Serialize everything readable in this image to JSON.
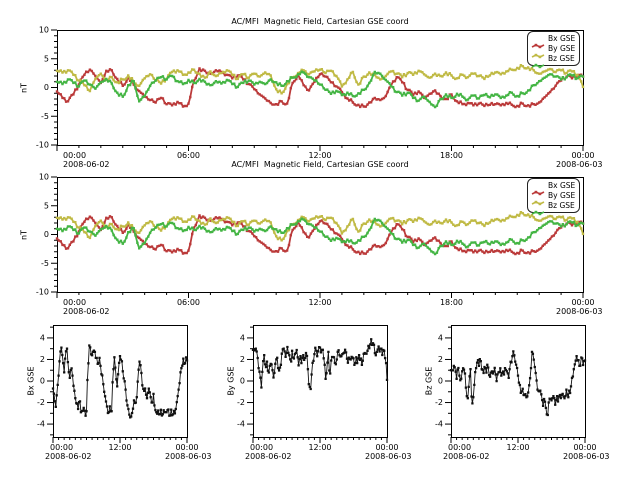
{
  "figure": {
    "top_title": "AC/MFI  Magnetic Field, Cartesian GSE coord",
    "middle_title": "AC/MFI  Magnetic Field, Cartesian GSE coord"
  },
  "legend": {
    "items": [
      {
        "label": "Bx GSE",
        "color": "#bb3a3a"
      },
      {
        "label": "By GSE",
        "color": "#c0ba45"
      },
      {
        "label": "Bz GSE",
        "color": "#44b544"
      }
    ]
  },
  "colors": {
    "bx": "#bb3a3a",
    "by": "#c0ba45",
    "bz": "#44b544",
    "small_series": "#111111",
    "frame": "#000000",
    "background": "#ffffff"
  },
  "axes": {
    "big_y_label": "nT",
    "big_y_ticks": [
      -10,
      -5,
      0,
      5,
      10
    ],
    "big_y_tick_labels": [
      "-10",
      "-5",
      "0",
      "5",
      "10"
    ],
    "big_ylim": [
      -10,
      10
    ],
    "big_x_tick_hours": [
      0,
      6,
      12,
      18,
      24
    ],
    "big_x_tick_labels": [
      "00:00",
      "06:00",
      "12:00",
      "18:00",
      "00:00"
    ],
    "small_y_ticks": [
      -4,
      -2,
      0,
      2,
      4
    ],
    "small_y_tick_labels": [
      "-4",
      "-2",
      "0",
      "2",
      "4"
    ],
    "small_ylim": [
      -5.2,
      5.2
    ],
    "small_x_tick_hours": [
      0,
      12,
      24
    ],
    "small_x_tick_labels": [
      "00:00",
      "12:00",
      "00:00"
    ],
    "start_date": "2008-06-02",
    "end_date": "2008-06-03",
    "small_panel_y_labels": [
      "Bx GSE",
      "By GSE",
      "Bz GSE"
    ]
  },
  "chart_data": [
    {
      "type": "line",
      "title": "AC/MFI  Magnetic Field, Cartesian GSE coord",
      "xlabel": "",
      "ylabel": "nT",
      "ylim": [
        -10,
        10
      ],
      "x_start": "2008-06-02 00:00",
      "x_end": "2008-06-03 00:00",
      "x_step_minutes": 15,
      "x_tick_labels": [
        "00:00",
        "06:00",
        "12:00",
        "18:00",
        "00:00"
      ],
      "y_tick_labels": [
        "-10",
        "-5",
        "0",
        "5",
        "10"
      ],
      "legend_position": "upper-right",
      "grid": false,
      "series": [
        {
          "name": "Bx GSE",
          "color": "#bb3a3a",
          "values": [
            -0.7,
            -1.8,
            -2.4,
            -1.2,
            0.5,
            2.2,
            3.1,
            2.0,
            0.8,
            2.9,
            3.0,
            1.5,
            0.3,
            1.8,
            0.5,
            -0.6,
            -1.6,
            -2.2,
            -2.6,
            -1.8,
            -2.9,
            -3.1,
            -2.5,
            -3.3,
            -2.8,
            1.2,
            3.3,
            2.9,
            2.4,
            3.0,
            2.7,
            2.2,
            1.6,
            2.1,
            1.4,
            0.6,
            -0.3,
            -1.2,
            -1.9,
            -2.7,
            -2.9,
            -2.4,
            -2.8,
            0.8,
            2.2,
            0.4,
            -0.5,
            1.0,
            2.3,
            1.9,
            0.9,
            0.2,
            -0.8,
            -1.9,
            -2.6,
            -3.0,
            -3.3,
            -2.6,
            -1.8,
            -2.2,
            -1.5,
            0.4,
            1.8,
            0.9,
            -0.4,
            -1.3,
            -0.7,
            -1.8,
            -1.1,
            -0.5,
            -1.5,
            -2.0,
            -1.2,
            -2.4,
            -2.9,
            -2.7,
            -3.1,
            -2.8,
            -3.2,
            -3.0,
            -2.9,
            -3.1,
            -2.7,
            -3.0,
            -3.2,
            -2.8,
            -3.1,
            -2.9,
            -2.6,
            -1.7,
            -0.8,
            0.3,
            1.2,
            1.9,
            1.6,
            2.1,
            1.9
          ]
        },
        {
          "name": "By GSE",
          "color": "#c0ba45",
          "values": [
            2.9,
            2.6,
            3.0,
            2.2,
            1.2,
            0.4,
            -0.6,
            1.5,
            2.4,
            1.3,
            1.8,
            0.9,
            1.4,
            2.1,
            1.0,
            0.3,
            1.6,
            2.3,
            1.2,
            0.7,
            1.5,
            2.7,
            3.0,
            2.2,
            2.6,
            3.1,
            2.4,
            1.7,
            2.8,
            2.0,
            2.5,
            3.0,
            2.2,
            1.5,
            2.3,
            1.7,
            2.4,
            1.9,
            2.6,
            2.1,
            -0.3,
            -1.0,
            0.6,
            1.8,
            2.5,
            3.0,
            2.3,
            2.8,
            3.1,
            2.5,
            2.9,
            2.0,
            0.2,
            1.4,
            2.7,
            0.5,
            1.9,
            2.6,
            2.2,
            1.4,
            2.0,
            2.8,
            2.4,
            1.8,
            2.5,
            2.2,
            2.9,
            2.3,
            1.7,
            2.4,
            2.0,
            2.6,
            2.1,
            1.6,
            2.2,
            1.8,
            2.4,
            2.0,
            1.5,
            2.1,
            2.6,
            2.3,
            2.8,
            3.1,
            3.4,
            3.7,
            3.5,
            3.0,
            2.4,
            2.8,
            3.2,
            2.7,
            3.0,
            2.5,
            2.8,
            2.2,
            0.1
          ]
        },
        {
          "name": "Bz GSE",
          "color": "#44b544",
          "values": [
            1.0,
            0.6,
            1.4,
            0.8,
            0.2,
            1.2,
            0.5,
            -0.2,
            0.9,
            1.5,
            0.7,
            -0.9,
            -1.6,
            0.4,
            1.1,
            -2.4,
            -1.5,
            0.3,
            1.2,
            1.8,
            1.4,
            2.0,
            1.1,
            0.6,
            1.3,
            0.8,
            1.5,
            1.0,
            0.4,
            1.1,
            0.7,
            1.3,
            0.6,
            0.1,
            0.8,
            1.2,
            0.5,
            1.0,
            0.6,
            1.4,
            0.9,
            0.3,
            1.1,
            1.7,
            2.3,
            2.6,
            1.8,
            1.2,
            0.5,
            -0.4,
            -1.1,
            -0.6,
            -1.3,
            -0.9,
            -1.5,
            -1.0,
            -0.4,
            0.8,
            2.7,
            2.4,
            1.3,
            0.2,
            -0.8,
            -1.4,
            -0.9,
            -1.8,
            -2.3,
            -1.6,
            -2.5,
            -3.4,
            -2.0,
            -1.2,
            -1.8,
            -1.1,
            -1.6,
            -2.1,
            -1.4,
            -1.9,
            -1.3,
            -1.7,
            -1.2,
            -1.8,
            -1.4,
            -0.9,
            -1.5,
            -1.0,
            -0.5,
            0.4,
            1.1,
            1.7,
            2.3,
            1.9,
            1.4,
            1.8,
            2.1,
            1.6,
            1.9
          ]
        }
      ]
    },
    {
      "type": "line",
      "title": "AC/MFI  Magnetic Field, Cartesian GSE coord",
      "ylabel": "nT",
      "ylim": [
        -10,
        10
      ],
      "x_tick_labels": [
        "00:00",
        "06:00",
        "12:00",
        "18:00",
        "00:00"
      ],
      "y_tick_labels": [
        "-10",
        "-5",
        "0",
        "5",
        "10"
      ],
      "note": "identical duplicate of panel 0 (same three series)",
      "same_series_as_panel": 0
    },
    {
      "type": "line",
      "ylabel": "Bx GSE",
      "ylim": [
        -5.2,
        5.2
      ],
      "y_tick_labels": [
        "-4",
        "-2",
        "0",
        "2",
        "4"
      ],
      "x_tick_labels": [
        "00:00",
        "12:00",
        "00:00"
      ],
      "series_color": "#111111",
      "same_values_as": "chart_data[0].series[0]"
    },
    {
      "type": "line",
      "ylabel": "By GSE",
      "ylim": [
        -5.2,
        5.2
      ],
      "y_tick_labels": [
        "-4",
        "-2",
        "0",
        "2",
        "4"
      ],
      "x_tick_labels": [
        "00:00",
        "12:00",
        "00:00"
      ],
      "series_color": "#111111",
      "same_values_as": "chart_data[0].series[1]"
    },
    {
      "type": "line",
      "ylabel": "Bz GSE",
      "ylim": [
        -5.2,
        5.2
      ],
      "y_tick_labels": [
        "-4",
        "-2",
        "0",
        "2",
        "4"
      ],
      "x_tick_labels": [
        "00:00",
        "12:00",
        "00:00"
      ],
      "series_color": "#111111",
      "same_values_as": "chart_data[0].series[2]"
    }
  ]
}
